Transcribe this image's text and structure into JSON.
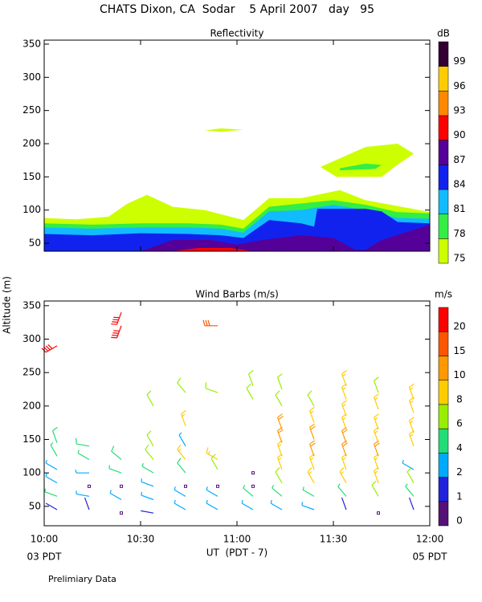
{
  "title": "CHATS Dixon, CA  Sodar    5 April 2007   day   95",
  "footnote": "Prelimiary Data",
  "chart_data": [
    {
      "type": "contour",
      "title": "Reflectivity",
      "xlim": [
        600,
        720
      ],
      "ylim": [
        38,
        356
      ],
      "xticks": [
        600,
        630,
        660,
        690,
        720
      ],
      "yticks": [
        50,
        100,
        150,
        200,
        250,
        300,
        350
      ],
      "colorbar": {
        "label": "dB",
        "levels": [
          75,
          78,
          81,
          84,
          87,
          90,
          93,
          96,
          99
        ],
        "colors": [
          "#ccff00",
          "#33ee44",
          "#11bbff",
          "#1122ee",
          "#550099",
          "#ff0000",
          "#ff8800",
          "#ffcc00",
          "#330033"
        ]
      },
      "regions": [
        {
          "level": 75,
          "x": [
            600,
            610,
            620,
            626,
            632,
            640,
            650,
            662,
            670,
            680,
            692,
            700,
            720,
            720,
            600
          ],
          "y": [
            88,
            86,
            90,
            110,
            123,
            105,
            100,
            85,
            118,
            118,
            130,
            115,
            97,
            38,
            38
          ]
        },
        {
          "level": 75,
          "x": [
            650,
            655,
            662,
            655
          ],
          "y": [
            220,
            223,
            221,
            218
          ]
        },
        {
          "level": 75,
          "x": [
            686,
            700,
            710,
            715,
            709,
            705,
            691
          ],
          "y": [
            165,
            195,
            200,
            185,
            165,
            150,
            150
          ]
        },
        {
          "level": 78,
          "x": [
            692,
            700,
            705,
            703,
            692
          ],
          "y": [
            163,
            170,
            168,
            162,
            160
          ]
        },
        {
          "level": 78,
          "x": [
            600,
            615,
            630,
            645,
            655,
            662,
            670,
            680,
            690,
            700,
            710,
            720,
            720,
            600
          ],
          "y": [
            80,
            78,
            80,
            80,
            78,
            72,
            105,
            110,
            115,
            108,
            97,
            95,
            38,
            38
          ]
        },
        {
          "level": 81,
          "x": [
            600,
            615,
            630,
            645,
            655,
            662,
            670,
            680,
            690,
            700,
            710,
            720,
            720,
            600
          ],
          "y": [
            74,
            72,
            74,
            74,
            72,
            66,
            98,
            100,
            108,
            100,
            88,
            87,
            38,
            38
          ]
        },
        {
          "level": 84,
          "x": [
            600,
            615,
            630,
            645,
            655,
            662,
            670,
            680,
            684,
            685,
            700,
            705,
            710,
            720,
            720,
            600
          ],
          "y": [
            64,
            62,
            65,
            64,
            62,
            58,
            85,
            80,
            75,
            102,
            102,
            98,
            82,
            80,
            38,
            38
          ]
        },
        {
          "level": 87,
          "x": [
            630,
            640,
            652,
            660,
            668,
            680,
            690,
            697,
            700,
            705,
            715,
            720,
            720,
            630
          ],
          "y": [
            38,
            55,
            55,
            48,
            55,
            62,
            58,
            40,
            40,
            55,
            70,
            78,
            38,
            38
          ]
        },
        {
          "level": 90,
          "x": [
            640,
            648,
            658,
            665
          ],
          "y": [
            38,
            43,
            43,
            38
          ]
        }
      ]
    },
    {
      "type": "barbs",
      "title": "Wind Barbs (m/s)",
      "y_label": "Altitude (m)",
      "x_label": "UT  (PDT - 7)",
      "x_start_label": "03 PDT",
      "x_end_label": "05 PDT",
      "xlim": [
        600,
        720
      ],
      "ylim": [
        21,
        357
      ],
      "xticks": [
        {
          "value": 600,
          "label": "10:00"
        },
        {
          "value": 630,
          "label": "10:30"
        },
        {
          "value": 660,
          "label": "11:00"
        },
        {
          "value": 690,
          "label": "11:30"
        },
        {
          "value": 720,
          "label": "12:00"
        }
      ],
      "yticks": [
        50,
        100,
        150,
        200,
        250,
        300,
        350
      ],
      "colorbar": {
        "label": "m/s",
        "levels": [
          0,
          1,
          2,
          4,
          6,
          8,
          10,
          15,
          20
        ],
        "colors": [
          "#551177",
          "#2222dd",
          "#00aaff",
          "#22dd77",
          "#99ee00",
          "#ffcc00",
          "#ff9900",
          "#ff5500",
          "#ff0000"
        ]
      },
      "barbs": [
        {
          "x": 604,
          "y": 45,
          "speed": 1,
          "direction": 300
        },
        {
          "x": 604,
          "y": 65,
          "speed": 4,
          "direction": 290
        },
        {
          "x": 604,
          "y": 85,
          "speed": 3,
          "direction": 300
        },
        {
          "x": 604,
          "y": 105,
          "speed": 3,
          "direction": 300
        },
        {
          "x": 604,
          "y": 125,
          "speed": 4,
          "direction": 330
        },
        {
          "x": 604,
          "y": 145,
          "speed": 5,
          "direction": 340
        },
        {
          "x": 604,
          "y": 290,
          "speed": 22,
          "direction": 240
        },
        {
          "x": 614,
          "y": 45,
          "speed": 1,
          "direction": 340
        },
        {
          "x": 614,
          "y": 65,
          "speed": 3,
          "direction": 280
        },
        {
          "x": 614,
          "y": 80,
          "speed": 0,
          "direction": 0
        },
        {
          "x": 614,
          "y": 100,
          "speed": 3,
          "direction": 270
        },
        {
          "x": 614,
          "y": 120,
          "speed": 4,
          "direction": 300
        },
        {
          "x": 614,
          "y": 140,
          "speed": 5,
          "direction": 280
        },
        {
          "x": 624,
          "y": 40,
          "speed": 0,
          "direction": 0
        },
        {
          "x": 624,
          "y": 60,
          "speed": 3,
          "direction": 300
        },
        {
          "x": 624,
          "y": 80,
          "speed": 0,
          "direction": 0
        },
        {
          "x": 624,
          "y": 100,
          "speed": 4,
          "direction": 290
        },
        {
          "x": 624,
          "y": 120,
          "speed": 5,
          "direction": 310
        },
        {
          "x": 624,
          "y": 320,
          "speed": 22,
          "direction": 200
        },
        {
          "x": 624,
          "y": 340,
          "speed": 22,
          "direction": 200
        },
        {
          "x": 634,
          "y": 40,
          "speed": 1,
          "direction": 280
        },
        {
          "x": 634,
          "y": 60,
          "speed": 3,
          "direction": 290
        },
        {
          "x": 634,
          "y": 80,
          "speed": 3,
          "direction": 290
        },
        {
          "x": 634,
          "y": 100,
          "speed": 4,
          "direction": 300
        },
        {
          "x": 634,
          "y": 120,
          "speed": 6,
          "direction": 320
        },
        {
          "x": 634,
          "y": 140,
          "speed": 6,
          "direction": 330
        },
        {
          "x": 634,
          "y": 200,
          "speed": 6,
          "direction": 330
        },
        {
          "x": 644,
          "y": 45,
          "speed": 3,
          "direction": 300
        },
        {
          "x": 644,
          "y": 65,
          "speed": 3,
          "direction": 300
        },
        {
          "x": 644,
          "y": 80,
          "speed": 0,
          "direction": 0
        },
        {
          "x": 644,
          "y": 100,
          "speed": 5,
          "direction": 320
        },
        {
          "x": 644,
          "y": 120,
          "speed": 8,
          "direction": 320
        },
        {
          "x": 644,
          "y": 140,
          "speed": 3,
          "direction": 330
        },
        {
          "x": 644,
          "y": 170,
          "speed": 8,
          "direction": 340
        },
        {
          "x": 644,
          "y": 220,
          "speed": 6,
          "direction": 320
        },
        {
          "x": 654,
          "y": 45,
          "speed": 3,
          "direction": 300
        },
        {
          "x": 654,
          "y": 65,
          "speed": 3,
          "direction": 300
        },
        {
          "x": 654,
          "y": 80,
          "speed": 0,
          "direction": 0
        },
        {
          "x": 654,
          "y": 105,
          "speed": 6,
          "direction": 330
        },
        {
          "x": 654,
          "y": 120,
          "speed": 8,
          "direction": 300
        },
        {
          "x": 654,
          "y": 220,
          "speed": 6,
          "direction": 290
        },
        {
          "x": 654,
          "y": 320,
          "speed": 15,
          "direction": 270
        },
        {
          "x": 665,
          "y": 45,
          "speed": 3,
          "direction": 300
        },
        {
          "x": 665,
          "y": 65,
          "speed": 4,
          "direction": 310
        },
        {
          "x": 665,
          "y": 80,
          "speed": 0,
          "direction": 0
        },
        {
          "x": 665,
          "y": 100,
          "speed": 0,
          "direction": 0
        },
        {
          "x": 665,
          "y": 210,
          "speed": 6,
          "direction": 330
        },
        {
          "x": 665,
          "y": 230,
          "speed": 6,
          "direction": 340
        },
        {
          "x": 674,
          "y": 45,
          "speed": 3,
          "direction": 300
        },
        {
          "x": 674,
          "y": 65,
          "speed": 4,
          "direction": 310
        },
        {
          "x": 674,
          "y": 85,
          "speed": 6,
          "direction": 330
        },
        {
          "x": 674,
          "y": 105,
          "speed": 8,
          "direction": 340
        },
        {
          "x": 674,
          "y": 125,
          "speed": 8,
          "direction": 340
        },
        {
          "x": 674,
          "y": 145,
          "speed": 10,
          "direction": 340
        },
        {
          "x": 674,
          "y": 165,
          "speed": 10,
          "direction": 340
        },
        {
          "x": 674,
          "y": 200,
          "speed": 6,
          "direction": 330
        },
        {
          "x": 674,
          "y": 225,
          "speed": 6,
          "direction": 340
        },
        {
          "x": 684,
          "y": 45,
          "speed": 3,
          "direction": 290
        },
        {
          "x": 684,
          "y": 65,
          "speed": 4,
          "direction": 300
        },
        {
          "x": 684,
          "y": 85,
          "speed": 8,
          "direction": 330
        },
        {
          "x": 684,
          "y": 105,
          "speed": 8,
          "direction": 340
        },
        {
          "x": 684,
          "y": 125,
          "speed": 10,
          "direction": 340
        },
        {
          "x": 684,
          "y": 150,
          "speed": 10,
          "direction": 340
        },
        {
          "x": 684,
          "y": 175,
          "speed": 8,
          "direction": 340
        },
        {
          "x": 684,
          "y": 200,
          "speed": 6,
          "direction": 330
        },
        {
          "x": 694,
          "y": 45,
          "speed": 1,
          "direction": 340
        },
        {
          "x": 694,
          "y": 65,
          "speed": 4,
          "direction": 320
        },
        {
          "x": 694,
          "y": 85,
          "speed": 8,
          "direction": 330
        },
        {
          "x": 694,
          "y": 105,
          "speed": 8,
          "direction": 340
        },
        {
          "x": 694,
          "y": 125,
          "speed": 10,
          "direction": 340
        },
        {
          "x": 694,
          "y": 145,
          "speed": 10,
          "direction": 340
        },
        {
          "x": 694,
          "y": 165,
          "speed": 8,
          "direction": 340
        },
        {
          "x": 694,
          "y": 185,
          "speed": 8,
          "direction": 340
        },
        {
          "x": 694,
          "y": 210,
          "speed": 8,
          "direction": 340
        },
        {
          "x": 694,
          "y": 230,
          "speed": 8,
          "direction": 340
        },
        {
          "x": 704,
          "y": 40,
          "speed": 0,
          "direction": 0
        },
        {
          "x": 704,
          "y": 65,
          "speed": 6,
          "direction": 330
        },
        {
          "x": 704,
          "y": 85,
          "speed": 8,
          "direction": 340
        },
        {
          "x": 704,
          "y": 105,
          "speed": 8,
          "direction": 340
        },
        {
          "x": 704,
          "y": 125,
          "speed": 10,
          "direction": 340
        },
        {
          "x": 704,
          "y": 145,
          "speed": 8,
          "direction": 340
        },
        {
          "x": 704,
          "y": 165,
          "speed": 8,
          "direction": 340
        },
        {
          "x": 704,
          "y": 195,
          "speed": 8,
          "direction": 340
        },
        {
          "x": 704,
          "y": 220,
          "speed": 6,
          "direction": 340
        },
        {
          "x": 715,
          "y": 45,
          "speed": 1,
          "direction": 340
        },
        {
          "x": 715,
          "y": 65,
          "speed": 4,
          "direction": 320
        },
        {
          "x": 715,
          "y": 85,
          "speed": 6,
          "direction": 330
        },
        {
          "x": 715,
          "y": 105,
          "speed": 3,
          "direction": 300
        },
        {
          "x": 715,
          "y": 140,
          "speed": 8,
          "direction": 340
        },
        {
          "x": 715,
          "y": 160,
          "speed": 8,
          "direction": 340
        },
        {
          "x": 715,
          "y": 190,
          "speed": 8,
          "direction": 340
        },
        {
          "x": 715,
          "y": 210,
          "speed": 8,
          "direction": 340
        }
      ]
    }
  ]
}
